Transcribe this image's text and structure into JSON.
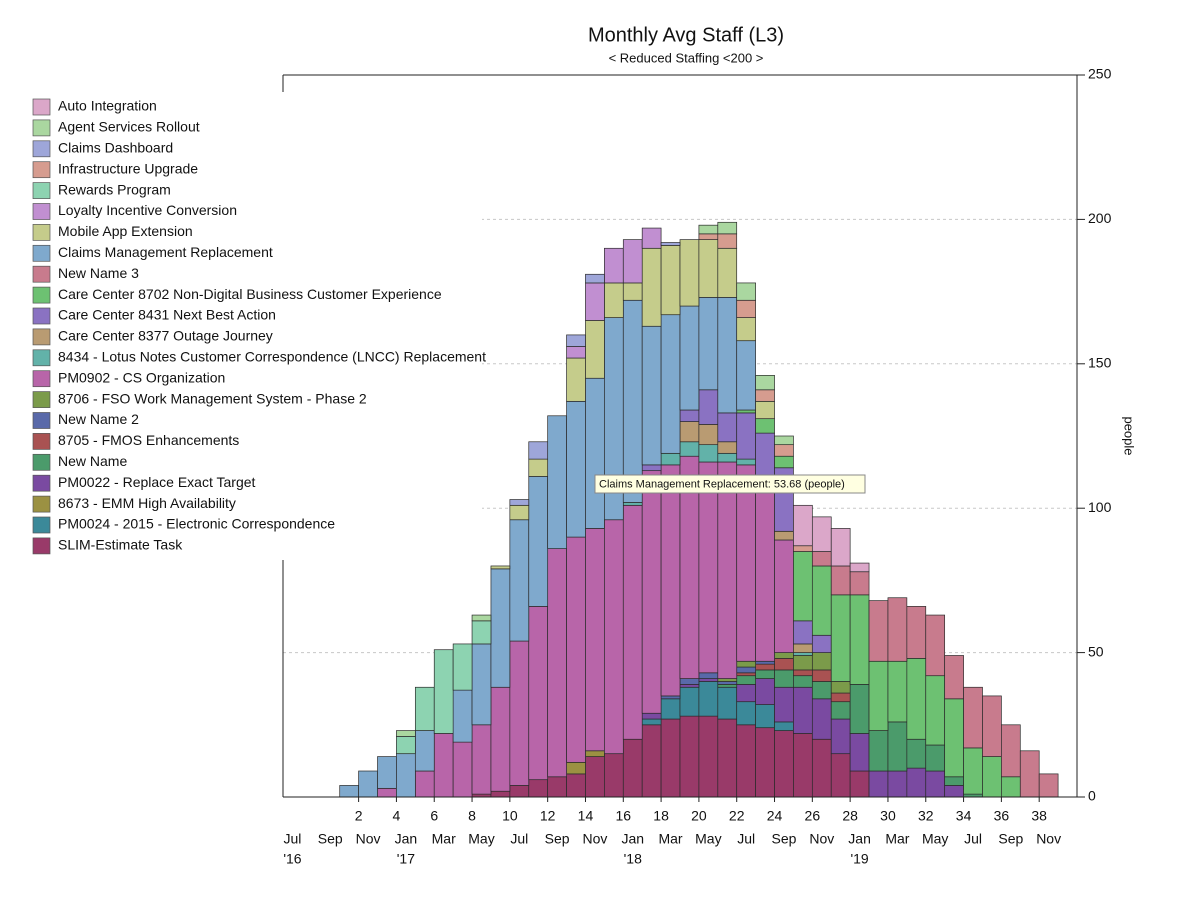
{
  "chart_data": {
    "type": "bar",
    "stacked": true,
    "title": "Monthly Avg Staff  (L3)",
    "subtitle": "< Reduced Staffing <200 >",
    "ylabel": "people",
    "annotation": "Claims Management Replacement: 53.68 (people)",
    "x": [
      1,
      2,
      3,
      4,
      5,
      6,
      7,
      8,
      9,
      10,
      11,
      12,
      13,
      14,
      15,
      16,
      17,
      18,
      19,
      20,
      21,
      22,
      23,
      24,
      25,
      26,
      27,
      28,
      29,
      30,
      31,
      32,
      33,
      34,
      35,
      36,
      37,
      38
    ],
    "xlim": [
      -2,
      40
    ],
    "xticks": [
      2,
      4,
      6,
      8,
      10,
      12,
      14,
      16,
      18,
      20,
      22,
      24,
      26,
      28,
      30,
      32,
      34,
      36,
      38
    ],
    "date_ticks": [
      {
        "value": -1.5,
        "label": "Jul"
      },
      {
        "value": 0.5,
        "label": "Sep"
      },
      {
        "value": 2.5,
        "label": "Nov"
      },
      {
        "value": 4.5,
        "label": "Jan"
      },
      {
        "value": 6.5,
        "label": "Mar"
      },
      {
        "value": 8.5,
        "label": "May"
      },
      {
        "value": 10.5,
        "label": "Jul"
      },
      {
        "value": 12.5,
        "label": "Sep"
      },
      {
        "value": 14.5,
        "label": "Nov"
      },
      {
        "value": 16.5,
        "label": "Jan"
      },
      {
        "value": 18.5,
        "label": "Mar"
      },
      {
        "value": 20.5,
        "label": "May"
      },
      {
        "value": 22.5,
        "label": "Jul"
      },
      {
        "value": 24.5,
        "label": "Sep"
      },
      {
        "value": 26.5,
        "label": "Nov"
      },
      {
        "value": 28.5,
        "label": "Jan"
      },
      {
        "value": 30.5,
        "label": "Mar"
      },
      {
        "value": 32.5,
        "label": "May"
      },
      {
        "value": 34.5,
        "label": "Jul"
      },
      {
        "value": 36.5,
        "label": "Sep"
      },
      {
        "value": 38.5,
        "label": "Nov"
      }
    ],
    "year_ticks": [
      {
        "value": -1.5,
        "label": "'16"
      },
      {
        "value": 4.5,
        "label": "'17"
      },
      {
        "value": 16.5,
        "label": "'18"
      },
      {
        "value": 28.5,
        "label": "'19"
      }
    ],
    "ylim": [
      0,
      250
    ],
    "yticks": [
      0,
      50,
      100,
      150,
      200,
      250
    ],
    "grid": true,
    "legend": "left",
    "series": [
      {
        "name": "Auto Integration",
        "color": "#dba7c9",
        "values": [
          0,
          0,
          0,
          0,
          0,
          0,
          0,
          0,
          0,
          0,
          0,
          0,
          0,
          0,
          0,
          0,
          0,
          0,
          0,
          0,
          0,
          0,
          0,
          0,
          14,
          12,
          13,
          3,
          0,
          0,
          0,
          0,
          0,
          0,
          0,
          0,
          0,
          0
        ]
      },
      {
        "name": "Agent Services Rollout",
        "color": "#aad7a0",
        "values": [
          0,
          0,
          0,
          2,
          0,
          0,
          0,
          2,
          0,
          0,
          0,
          0,
          0,
          0,
          0,
          0,
          0,
          0,
          0,
          3,
          4,
          6,
          5,
          3,
          0,
          0,
          0,
          0,
          0,
          0,
          0,
          0,
          0,
          0,
          0,
          0,
          0,
          0
        ]
      },
      {
        "name": "Claims Dashboard",
        "color": "#9ea6d9",
        "values": [
          0,
          0,
          0,
          0,
          0,
          0,
          0,
          0,
          0,
          2,
          6,
          0,
          4,
          3,
          0,
          0,
          0,
          1,
          0,
          0,
          0,
          0,
          0,
          0,
          0,
          0,
          0,
          0,
          0,
          0,
          0,
          0,
          0,
          0,
          0,
          0,
          0,
          0
        ]
      },
      {
        "name": "Infrastructure Upgrade",
        "color": "#d69c8f",
        "values": [
          0,
          0,
          0,
          0,
          0,
          0,
          0,
          0,
          0,
          0,
          0,
          0,
          0,
          0,
          0,
          0,
          0,
          0,
          0,
          2,
          5,
          6,
          4,
          4,
          2,
          0,
          0,
          0,
          0,
          0,
          0,
          0,
          0,
          0,
          0,
          0,
          0,
          0
        ]
      },
      {
        "name": "Rewards Program",
        "color": "#8dd3b1",
        "values": [
          0,
          0,
          0,
          6,
          15,
          29,
          16,
          8,
          0,
          0,
          0,
          0,
          0,
          0,
          0,
          0,
          0,
          0,
          0,
          0,
          0,
          0,
          0,
          0,
          0,
          0,
          0,
          0,
          0,
          0,
          0,
          0,
          0,
          0,
          0,
          0,
          0,
          0
        ]
      },
      {
        "name": "Loyalty Incentive Conversion",
        "color": "#c18fd1",
        "values": [
          0,
          0,
          0,
          0,
          0,
          0,
          0,
          0,
          0,
          0,
          0,
          0,
          4,
          13,
          12,
          15,
          7,
          0,
          0,
          0,
          0,
          0,
          0,
          0,
          0,
          0,
          0,
          0,
          0,
          0,
          0,
          0,
          0,
          0,
          0,
          0,
          0,
          0
        ]
      },
      {
        "name": "Mobile App Extension",
        "color": "#c5cc8b",
        "values": [
          0,
          0,
          0,
          0,
          0,
          0,
          0,
          0,
          1,
          5,
          6,
          0,
          15,
          20,
          12,
          6,
          27,
          24,
          23,
          20,
          17,
          8,
          6,
          0,
          0,
          0,
          0,
          0,
          0,
          0,
          0,
          0,
          0,
          0,
          0,
          0,
          0,
          0
        ]
      },
      {
        "name": "Claims Management Replacement",
        "color": "#7fa9cd",
        "values": [
          4,
          9,
          11,
          15,
          14,
          0,
          18,
          28,
          41,
          42,
          45,
          46,
          47,
          52,
          70,
          70,
          48,
          48,
          36,
          32,
          40,
          24,
          0,
          0,
          0,
          0,
          0,
          0,
          0,
          0,
          0,
          0,
          0,
          0,
          0,
          0,
          0,
          0
        ]
      },
      {
        "name": "New Name 3",
        "color": "#c87b8d",
        "values": [
          0,
          0,
          0,
          0,
          0,
          0,
          0,
          0,
          0,
          0,
          0,
          0,
          0,
          0,
          0,
          0,
          0,
          0,
          0,
          0,
          0,
          0,
          0,
          0,
          0,
          5,
          10,
          8,
          21,
          22,
          18,
          21,
          15,
          21,
          21,
          18,
          16,
          8
        ]
      },
      {
        "name": "Care Center 8702 Non-Digital Business Customer Experience",
        "color": "#6dc172",
        "values": [
          0,
          0,
          0,
          0,
          0,
          0,
          0,
          0,
          0,
          0,
          0,
          0,
          0,
          0,
          0,
          0,
          0,
          0,
          0,
          0,
          0,
          1,
          5,
          4,
          24,
          24,
          30,
          31,
          24,
          21,
          28,
          24,
          27,
          16,
          14,
          7,
          0,
          0
        ]
      },
      {
        "name": "Care Center 8431 Next Best Action",
        "color": "#8a72c2",
        "values": [
          0,
          0,
          0,
          0,
          0,
          0,
          0,
          0,
          0,
          0,
          0,
          0,
          0,
          0,
          0,
          0,
          2,
          0,
          4,
          12,
          10,
          16,
          19,
          22,
          8,
          6,
          0,
          0,
          0,
          0,
          0,
          0,
          0,
          0,
          0,
          0,
          0,
          0
        ]
      },
      {
        "name": "Care Center 8377 Outage Journey",
        "color": "#b99b72",
        "values": [
          0,
          0,
          0,
          0,
          0,
          0,
          0,
          0,
          0,
          0,
          0,
          0,
          0,
          0,
          0,
          0,
          0,
          0,
          7,
          7,
          4,
          0,
          0,
          3,
          3,
          0,
          0,
          0,
          0,
          0,
          0,
          0,
          0,
          0,
          0,
          0,
          0,
          0
        ]
      },
      {
        "name": "8434 - Lotus Notes Customer Correspondence (LNCC) Replacement",
        "color": "#62b2a9",
        "values": [
          0,
          0,
          0,
          0,
          0,
          0,
          0,
          0,
          0,
          0,
          0,
          0,
          0,
          0,
          0,
          1,
          0,
          4,
          5,
          6,
          3,
          2,
          0,
          0,
          1,
          0,
          0,
          0,
          0,
          0,
          0,
          0,
          0,
          0,
          0,
          0,
          0,
          0
        ]
      },
      {
        "name": "PM0902 - CS Organization",
        "color": "#b865a9",
        "values": [
          0,
          0,
          3,
          0,
          9,
          22,
          19,
          24,
          36,
          50,
          60,
          79,
          78,
          77,
          81,
          81,
          84,
          80,
          77,
          73,
          75,
          68,
          60,
          39,
          0,
          0,
          0,
          0,
          0,
          0,
          0,
          0,
          0,
          0,
          0,
          0,
          0,
          0
        ]
      },
      {
        "name": "8706 - FSO Work Management System - Phase 2",
        "color": "#7b9b4a",
        "values": [
          0,
          0,
          0,
          0,
          0,
          0,
          0,
          0,
          0,
          0,
          0,
          0,
          0,
          0,
          0,
          0,
          0,
          0,
          0,
          0,
          1,
          2,
          0,
          2,
          5,
          6,
          4,
          0,
          0,
          0,
          0,
          0,
          0,
          0,
          0,
          0,
          0,
          0
        ]
      },
      {
        "name": "New Name 2",
        "color": "#5969a9",
        "values": [
          0,
          0,
          0,
          0,
          0,
          0,
          0,
          0,
          0,
          0,
          0,
          0,
          0,
          0,
          0,
          0,
          0,
          1,
          2,
          2,
          1,
          2,
          1,
          0,
          0,
          0,
          0,
          0,
          0,
          0,
          0,
          0,
          0,
          0,
          0,
          0,
          0,
          0
        ]
      },
      {
        "name": "8705 - FMOS Enhancements",
        "color": "#a95252",
        "values": [
          0,
          0,
          0,
          0,
          0,
          0,
          0,
          0,
          0,
          0,
          0,
          0,
          0,
          0,
          0,
          0,
          0,
          0,
          0,
          0,
          0,
          1,
          2,
          4,
          2,
          4,
          3,
          0,
          0,
          0,
          0,
          0,
          0,
          0,
          0,
          0,
          0,
          0
        ]
      },
      {
        "name": "New Name",
        "color": "#4b9b6b",
        "values": [
          0,
          0,
          0,
          0,
          0,
          0,
          0,
          0,
          0,
          0,
          0,
          0,
          0,
          0,
          0,
          0,
          0,
          0,
          0,
          0,
          1,
          3,
          3,
          6,
          4,
          6,
          6,
          17,
          14,
          17,
          10,
          9,
          3,
          1,
          0,
          0,
          0,
          0
        ]
      },
      {
        "name": "PM0022 - Replace Exact Target",
        "color": "#7a4aa1",
        "values": [
          0,
          0,
          0,
          0,
          0,
          0,
          0,
          0,
          0,
          0,
          0,
          0,
          0,
          0,
          0,
          0,
          2,
          0,
          1,
          1,
          0,
          6,
          9,
          12,
          16,
          14,
          12,
          13,
          9,
          9,
          10,
          9,
          4,
          0,
          0,
          0,
          0,
          0
        ]
      },
      {
        "name": "8673 - EMM High Availability",
        "color": "#9b9142",
        "values": [
          0,
          0,
          0,
          0,
          0,
          0,
          0,
          0,
          0,
          0,
          0,
          0,
          4,
          2,
          0,
          0,
          0,
          0,
          0,
          0,
          0,
          0,
          0,
          0,
          0,
          0,
          0,
          0,
          0,
          0,
          0,
          0,
          0,
          0,
          0,
          0,
          0,
          0
        ]
      },
      {
        "name": "PM0024 - 2015 - Electronic Correspondence",
        "color": "#3b8999",
        "values": [
          0,
          0,
          0,
          0,
          0,
          0,
          0,
          0,
          0,
          0,
          0,
          0,
          0,
          0,
          0,
          0,
          2,
          7,
          10,
          12,
          11,
          8,
          8,
          3,
          0,
          0,
          0,
          0,
          0,
          0,
          0,
          0,
          0,
          0,
          0,
          0,
          0,
          0
        ]
      },
      {
        "name": "SLIM-Estimate Task",
        "color": "#993a69",
        "values": [
          0,
          0,
          0,
          0,
          0,
          0,
          0,
          1,
          2,
          4,
          6,
          7,
          8,
          14,
          15,
          20,
          25,
          27,
          28,
          28,
          27,
          25,
          24,
          23,
          22,
          20,
          15,
          9,
          0,
          0,
          0,
          0,
          0,
          0,
          0,
          0,
          0,
          0
        ]
      }
    ]
  }
}
